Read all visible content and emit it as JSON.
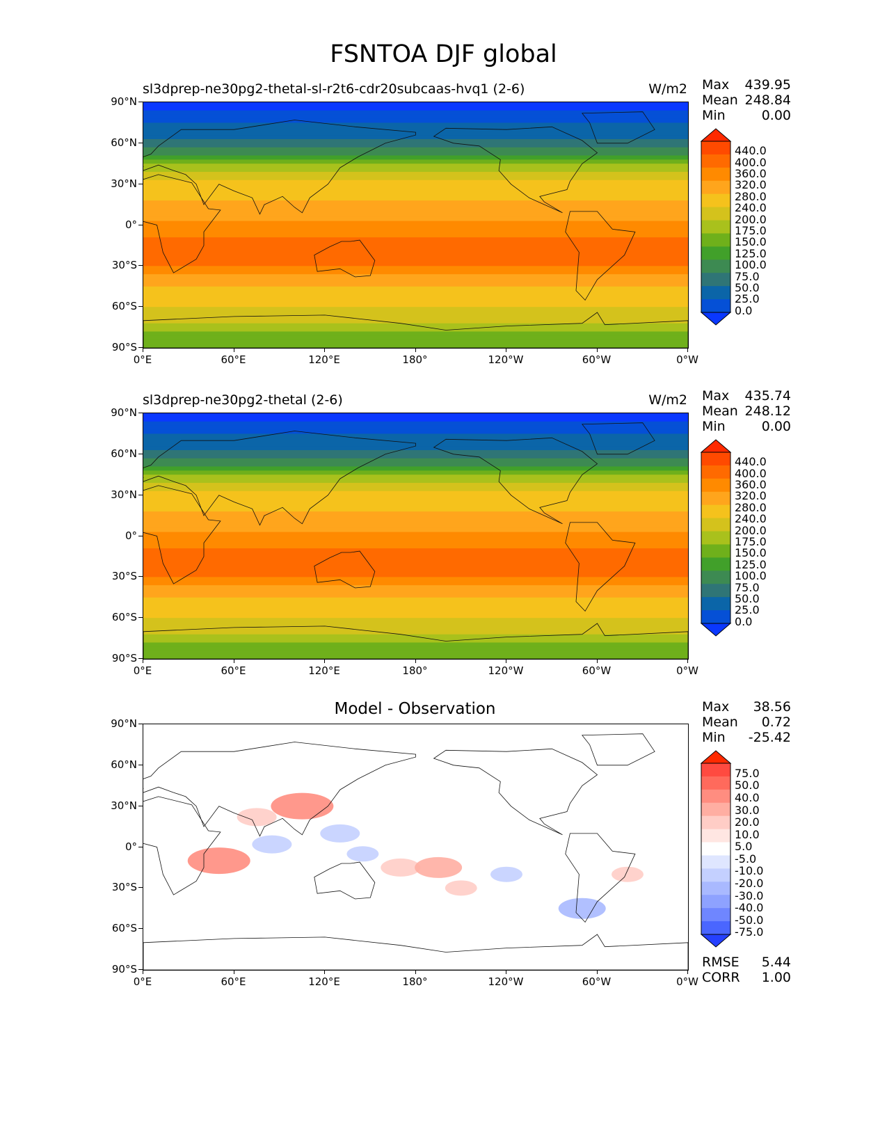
{
  "figure_title": "FSNTOA DJF global",
  "panels": [
    {
      "title": "sl3dprep-ne30pg2-thetal-sl-r2t6-cdr20subcaas-hvq1 (2-6)",
      "units": "W/m2",
      "stats": {
        "max_label": "Max",
        "max": "439.95",
        "mean_label": "Mean",
        "mean": "248.84",
        "min_label": "Min",
        "min": "0.00"
      }
    },
    {
      "title": "sl3dprep-ne30pg2-thetal (2-6)",
      "units": "W/m2",
      "stats": {
        "max_label": "Max",
        "max": "435.74",
        "mean_label": "Mean",
        "mean": "248.12",
        "min_label": "Min",
        "min": "0.00"
      }
    },
    {
      "title": "Model - Observation",
      "units": "",
      "stats": {
        "max_label": "Max",
        "max": "38.56",
        "mean_label": "Mean",
        "mean": "0.72",
        "min_label": "Min",
        "min": "-25.42"
      },
      "footer": {
        "rmse_label": "RMSE",
        "rmse": "5.44",
        "corr_label": "CORR",
        "corr": "1.00"
      }
    }
  ],
  "chart_data": [
    {
      "type": "heatmap",
      "title": "sl3dprep-ne30pg2-thetal-sl-r2t6-cdr20subcaas-hvq1 (2-6)",
      "units": "W/m2",
      "x_ticks": [
        "0°E",
        "60°E",
        "120°E",
        "180°",
        "120°W",
        "60°W",
        "0°W"
      ],
      "y_ticks": [
        "90°N",
        "60°N",
        "30°N",
        "0°",
        "30°S",
        "60°S",
        "90°S"
      ],
      "xlim": [
        0,
        360
      ],
      "ylim": [
        -90,
        90
      ],
      "colorbar_levels": [
        "440.0",
        "400.0",
        "360.0",
        "320.0",
        "280.0",
        "240.0",
        "200.0",
        "175.0",
        "150.0",
        "125.0",
        "100.0",
        "75.0",
        "50.0",
        "25.0",
        "0.0"
      ],
      "colorbar_colors": [
        "#ff2a00",
        "#ff4a00",
        "#ff6a00",
        "#ff8a00",
        "#ffa51c",
        "#f5c21c",
        "#d4c21c",
        "#a9c11c",
        "#6fb01b",
        "#41a02a",
        "#3d8a52",
        "#2f7576",
        "#0b65a8",
        "#0550d6",
        "#0a38ff"
      ],
      "latitude_profile": [
        {
          "lat": 90,
          "value": 10
        },
        {
          "lat": 80,
          "value": 40
        },
        {
          "lat": 70,
          "value": 60
        },
        {
          "lat": 60,
          "value": 85
        },
        {
          "lat": 50,
          "value": 130
        },
        {
          "lat": 40,
          "value": 200
        },
        {
          "lat": 30,
          "value": 250
        },
        {
          "lat": 20,
          "value": 275
        },
        {
          "lat": 10,
          "value": 300
        },
        {
          "lat": 0,
          "value": 330
        },
        {
          "lat": -10,
          "value": 360
        },
        {
          "lat": -20,
          "value": 380
        },
        {
          "lat": -30,
          "value": 360
        },
        {
          "lat": -40,
          "value": 300
        },
        {
          "lat": -50,
          "value": 260
        },
        {
          "lat": -60,
          "value": 240
        },
        {
          "lat": -70,
          "value": 220
        },
        {
          "lat": -80,
          "value": 160
        },
        {
          "lat": -90,
          "value": 150
        }
      ]
    },
    {
      "type": "heatmap",
      "title": "sl3dprep-ne30pg2-thetal (2-6)",
      "units": "W/m2",
      "x_ticks": [
        "0°E",
        "60°E",
        "120°E",
        "180°",
        "120°W",
        "60°W",
        "0°W"
      ],
      "y_ticks": [
        "90°N",
        "60°N",
        "30°N",
        "0°",
        "30°S",
        "60°S",
        "90°S"
      ],
      "xlim": [
        0,
        360
      ],
      "ylim": [
        -90,
        90
      ],
      "colorbar_levels": [
        "440.0",
        "400.0",
        "360.0",
        "320.0",
        "280.0",
        "240.0",
        "200.0",
        "175.0",
        "150.0",
        "125.0",
        "100.0",
        "75.0",
        "50.0",
        "25.0",
        "0.0"
      ],
      "colorbar_colors": [
        "#ff2a00",
        "#ff4a00",
        "#ff6a00",
        "#ff8a00",
        "#ffa51c",
        "#f5c21c",
        "#d4c21c",
        "#a9c11c",
        "#6fb01b",
        "#41a02a",
        "#3d8a52",
        "#2f7576",
        "#0b65a8",
        "#0550d6",
        "#0a38ff"
      ],
      "latitude_profile": [
        {
          "lat": 90,
          "value": 10
        },
        {
          "lat": 80,
          "value": 40
        },
        {
          "lat": 70,
          "value": 60
        },
        {
          "lat": 60,
          "value": 85
        },
        {
          "lat": 50,
          "value": 130
        },
        {
          "lat": 40,
          "value": 200
        },
        {
          "lat": 30,
          "value": 250
        },
        {
          "lat": 20,
          "value": 275
        },
        {
          "lat": 10,
          "value": 300
        },
        {
          "lat": 0,
          "value": 330
        },
        {
          "lat": -10,
          "value": 360
        },
        {
          "lat": -20,
          "value": 380
        },
        {
          "lat": -30,
          "value": 360
        },
        {
          "lat": -40,
          "value": 300
        },
        {
          "lat": -50,
          "value": 260
        },
        {
          "lat": -60,
          "value": 240
        },
        {
          "lat": -70,
          "value": 220
        },
        {
          "lat": -80,
          "value": 160
        },
        {
          "lat": -90,
          "value": 150
        }
      ]
    },
    {
      "type": "heatmap",
      "title": "Model - Observation",
      "x_ticks": [
        "0°E",
        "60°E",
        "120°E",
        "180°",
        "120°W",
        "60°W",
        "0°W"
      ],
      "y_ticks": [
        "90°N",
        "60°N",
        "30°N",
        "0°",
        "30°S",
        "60°S",
        "90°S"
      ],
      "xlim": [
        0,
        360
      ],
      "ylim": [
        -90,
        90
      ],
      "colorbar_levels": [
        "75.0",
        "50.0",
        "40.0",
        "30.0",
        "20.0",
        "10.0",
        "5.0",
        "-5.0",
        "-10.0",
        "-20.0",
        "-30.0",
        "-40.0",
        "-50.0",
        "-75.0"
      ],
      "colorbar_colors": [
        "#ff2a00",
        "#ff4a40",
        "#ff6a5c",
        "#ff8d80",
        "#ffaea2",
        "#ffcdc6",
        "#ffe6e2",
        "#ffffff",
        "#dfe6ff",
        "#c4d0ff",
        "#a9b9ff",
        "#8ea2ff",
        "#6f86ff",
        "#4a66ff",
        "#2540ff"
      ],
      "anomalies": [
        {
          "lon": 105,
          "lat": 30,
          "value": 30
        },
        {
          "lon": 50,
          "lat": -10,
          "value": 30
        },
        {
          "lon": 75,
          "lat": 22,
          "value": 15
        },
        {
          "lon": 130,
          "lat": 10,
          "value": -15
        },
        {
          "lon": 85,
          "lat": 2,
          "value": -15
        },
        {
          "lon": 170,
          "lat": -15,
          "value": 15
        },
        {
          "lon": 195,
          "lat": -15,
          "value": 20
        },
        {
          "lon": 145,
          "lat": -5,
          "value": -10
        },
        {
          "lon": 290,
          "lat": -45,
          "value": -20
        },
        {
          "lon": 210,
          "lat": -30,
          "value": 10
        },
        {
          "lon": 320,
          "lat": -20,
          "value": 10
        },
        {
          "lon": 240,
          "lat": -20,
          "value": -10
        }
      ]
    }
  ]
}
